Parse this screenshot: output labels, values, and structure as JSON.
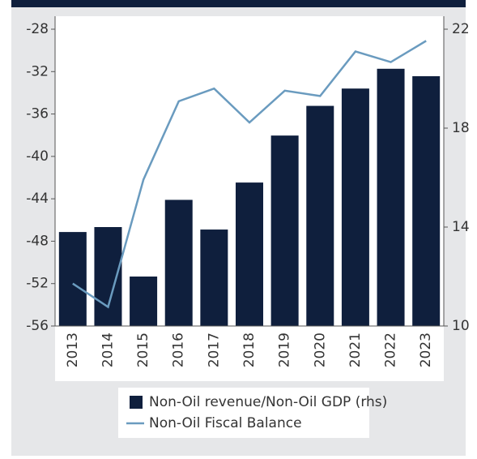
{
  "chart_data": {
    "type": "bar",
    "categories": [
      "2013",
      "2014",
      "2015",
      "2016",
      "2017",
      "2018",
      "2019",
      "2020",
      "2021",
      "2022",
      "2023"
    ],
    "series": [
      {
        "name": "Non-Oil revenue/Non-Oil GDP (rhs)",
        "type": "bar",
        "axis": "y2",
        "color": "#0f1f3d",
        "values": [
          13.8,
          14.0,
          12.0,
          15.1,
          13.9,
          15.8,
          17.7,
          18.9,
          19.6,
          20.4,
          20.1
        ]
      },
      {
        "name": "Non-Oil Fiscal Balance",
        "type": "line",
        "color": "#6a9bbf",
        "values": [
          -52.0,
          -54.2,
          -42.2,
          -34.8,
          -33.6,
          -36.8,
          -33.8,
          -34.3,
          -30.1,
          -31.1,
          -29.1
        ]
      }
    ],
    "ylim": [
      -56,
      -28
    ],
    "yticks": [
      -28,
      -32,
      -36,
      -40,
      -44,
      -48,
      -52,
      -56
    ],
    "y2lim": [
      10,
      22
    ],
    "y2ticks": [
      10,
      14,
      18,
      22
    ],
    "legend": "bottom"
  }
}
